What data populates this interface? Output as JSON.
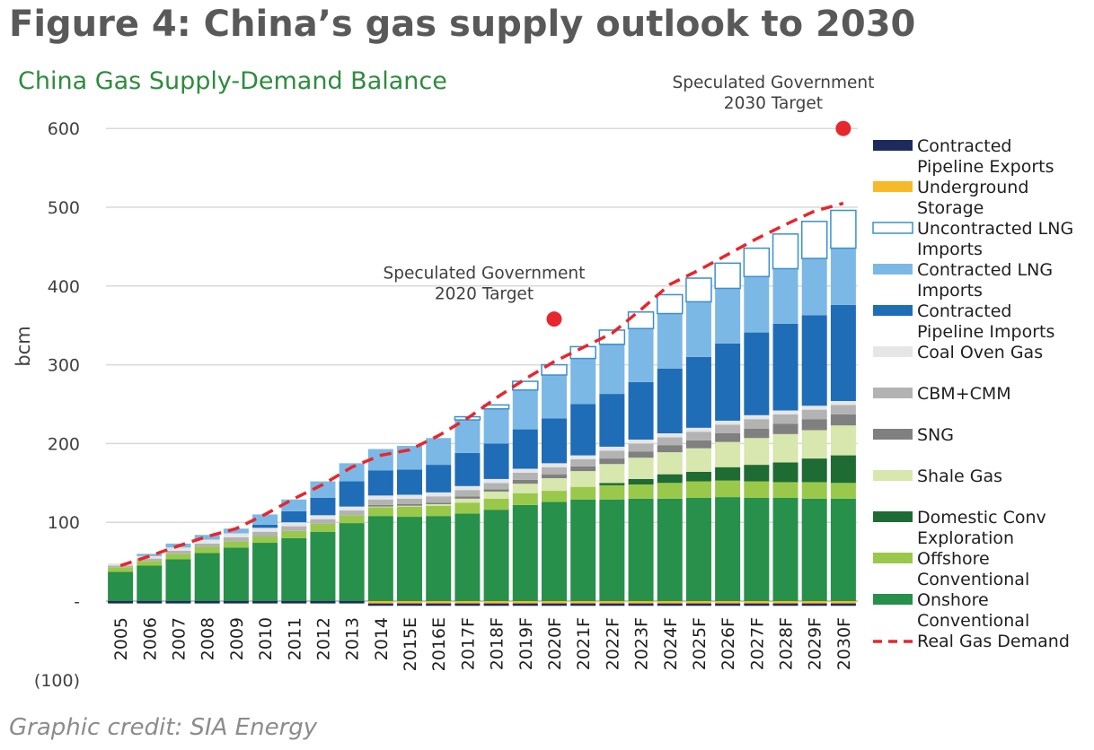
{
  "figure_title": "Figure 4: China’s gas supply outlook to 2030",
  "credit": "Graphic credit: SIA Energy",
  "chart_data": {
    "type": "bar",
    "stacked": true,
    "title": "China Gas Supply-Demand Balance",
    "title_color": "#2e8b3e",
    "ylabel": "bcm",
    "ylim": [
      -100,
      600
    ],
    "yticks": [
      600,
      500,
      400,
      300,
      200,
      100,
      0,
      -100
    ],
    "ytick_labels": [
      "600",
      "500",
      "400",
      "300",
      "200",
      "100",
      "-",
      "(100)"
    ],
    "grid": true,
    "legend_position": "right",
    "categories": [
      "2005",
      "2006",
      "2007",
      "2008",
      "2009",
      "2010",
      "2011",
      "2012",
      "2013",
      "2014",
      "2015E",
      "2016E",
      "2017F",
      "2018F",
      "2019F",
      "2020F",
      "2021F",
      "2022F",
      "2023F",
      "2024F",
      "2025F",
      "2026F",
      "2027F",
      "2028F",
      "2029F",
      "2030F"
    ],
    "series": [
      {
        "name": "Onshore Conventional",
        "color": "#27904a",
        "values": [
          37,
          45,
          53,
          61,
          68,
          74,
          80,
          88,
          99,
          108,
          107,
          108,
          111,
          116,
          122,
          126,
          129,
          129,
          130,
          130,
          131,
          132,
          131,
          131,
          130,
          130
        ]
      },
      {
        "name": "Offshore Conventional",
        "color": "#9ac84b",
        "values": [
          6,
          6,
          7,
          8,
          8,
          8,
          9,
          10,
          10,
          11,
          13,
          13,
          14,
          14,
          15,
          14,
          16,
          18,
          18,
          20,
          21,
          21,
          21,
          20,
          21,
          20
        ]
      },
      {
        "name": "Domestic Conv Exploration",
        "color": "#1e6b34",
        "values": [
          0,
          0,
          0,
          0,
          0,
          0,
          0,
          0,
          0,
          0,
          0,
          0,
          0,
          0,
          0,
          0,
          0,
          3,
          7,
          11,
          12,
          17,
          21,
          25,
          30,
          35
        ]
      },
      {
        "name": "Shale Gas",
        "color": "#d7e7ad",
        "values": [
          0,
          0,
          0,
          0,
          0,
          0,
          0,
          0,
          0,
          1,
          1,
          2,
          5,
          9,
          12,
          16,
          20,
          24,
          27,
          28,
          30,
          32,
          34,
          36,
          36,
          38
        ]
      },
      {
        "name": "SNG",
        "color": "#808080",
        "values": [
          0,
          0,
          0,
          0,
          0,
          0,
          0,
          0,
          0,
          2,
          2,
          2,
          3,
          3,
          5,
          5,
          6,
          7,
          8,
          9,
          10,
          11,
          12,
          13,
          14,
          14
        ]
      },
      {
        "name": "CBM+CMM",
        "color": "#b3b3b3",
        "values": [
          2,
          3,
          4,
          4,
          5,
          6,
          6,
          6,
          6,
          7,
          7,
          8,
          8,
          8,
          9,
          9,
          9,
          10,
          10,
          10,
          11,
          11,
          12,
          12,
          12,
          12
        ]
      },
      {
        "name": "Coal Oven Gas",
        "color": "#e6e6e6",
        "values": [
          3,
          3,
          4,
          5,
          5,
          5,
          5,
          5,
          5,
          5,
          5,
          5,
          5,
          5,
          5,
          5,
          5,
          5,
          5,
          5,
          5,
          5,
          5,
          5,
          5,
          5
        ]
      },
      {
        "name": "Contracted Pipeline Imports",
        "color": "#1f6db6",
        "values": [
          0,
          0,
          0,
          0,
          0,
          4,
          14,
          22,
          32,
          32,
          32,
          35,
          42,
          45,
          50,
          57,
          65,
          67,
          73,
          82,
          90,
          98,
          105,
          110,
          115,
          122
        ]
      },
      {
        "name": "Contracted LNG Imports",
        "color": "#7cb8e6",
        "values": [
          0,
          3,
          5,
          6,
          6,
          13,
          15,
          21,
          23,
          27,
          30,
          34,
          42,
          44,
          50,
          55,
          58,
          63,
          68,
          70,
          70,
          70,
          71,
          70,
          72,
          72
        ]
      },
      {
        "name": "Uncontracted LNG Imports",
        "color": "#ffffff",
        "stroke": "#3a8fd0",
        "values": [
          0,
          0,
          0,
          0,
          0,
          0,
          0,
          0,
          0,
          0,
          0,
          0,
          4,
          5,
          11,
          13,
          15,
          18,
          21,
          24,
          30,
          32,
          36,
          44,
          47,
          48
        ]
      },
      {
        "name": "Underground Storage",
        "color": "#f7b928",
        "values": [
          0,
          0,
          0,
          0,
          0,
          0,
          0,
          0,
          0,
          -3,
          -3,
          -3,
          -3,
          -3,
          -3,
          -3,
          -3,
          -3,
          -3,
          -3,
          -3,
          -3,
          -3,
          -3,
          -3,
          -3
        ]
      },
      {
        "name": "Contracted Pipeline Exports",
        "color": "#1f2a5c",
        "values": [
          -3,
          -3,
          -3,
          -3,
          -3,
          -3,
          -3,
          -3,
          -3,
          -3,
          -3,
          -3,
          -3,
          -3,
          -3,
          -3,
          -3,
          -3,
          -3,
          -3,
          -3,
          -3,
          -3,
          -3,
          -3,
          -3
        ]
      },
      {
        "name": "Real Gas Demand",
        "type": "line",
        "color": "#e8262d",
        "dashed": true,
        "values": [
          45,
          57,
          70,
          82,
          92,
          110,
          130,
          148,
          170,
          185,
          192,
          210,
          232,
          258,
          282,
          304,
          322,
          340,
          370,
          402,
          420,
          440,
          460,
          478,
          495,
          505
        ]
      }
    ],
    "annotations": [
      {
        "lines": [
          "Speculated Government",
          "2020 Target"
        ],
        "x": "2020F",
        "y": 358,
        "marker_color": "#e8262d"
      },
      {
        "lines": [
          "Speculated Government",
          "2030 Target"
        ],
        "x": "2030F",
        "y": 600,
        "marker_color": "#e8262d"
      }
    ],
    "legend": [
      {
        "series": "Contracted Pipeline Exports",
        "lines": [
          "Contracted",
          "Pipeline Exports"
        ]
      },
      {
        "series": "Underground Storage",
        "lines": [
          "Underground",
          "Storage"
        ]
      },
      {
        "series": "Uncontracted LNG Imports",
        "lines": [
          "Uncontracted LNG",
          "Imports"
        ]
      },
      {
        "series": "Contracted LNG Imports",
        "lines": [
          "Contracted LNG",
          "Imports"
        ]
      },
      {
        "series": "Contracted Pipeline Imports",
        "lines": [
          "Contracted",
          "Pipeline Imports"
        ]
      },
      {
        "series": "Coal Oven Gas",
        "lines": [
          "Coal Oven Gas"
        ]
      },
      {
        "series": "CBM+CMM",
        "lines": [
          "CBM+CMM"
        ]
      },
      {
        "series": "SNG",
        "lines": [
          "SNG"
        ]
      },
      {
        "series": "Shale Gas",
        "lines": [
          "Shale Gas"
        ]
      },
      {
        "series": "Domestic Conv Exploration",
        "lines": [
          "Domestic Conv",
          "Exploration"
        ]
      },
      {
        "series": "Offshore Conventional",
        "lines": [
          "Offshore",
          "Conventional"
        ]
      },
      {
        "series": "Onshore Conventional",
        "lines": [
          "Onshore",
          "Conventional"
        ]
      },
      {
        "series": "Real Gas Demand",
        "lines": [
          "Real Gas Demand"
        ]
      }
    ]
  }
}
